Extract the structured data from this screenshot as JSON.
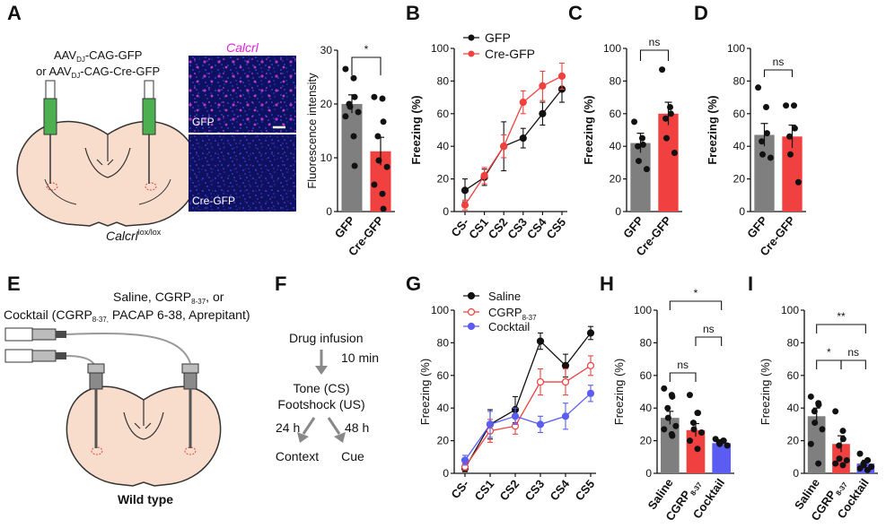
{
  "colors": {
    "gray": "#7f7f7f",
    "red": "#f0403f",
    "blue": "#5a5cf2",
    "black": "#111111",
    "brain": "#f8dccc",
    "green": "#4cb050"
  },
  "panelA": {
    "label": "A",
    "virus_line1": "AAV",
    "virus_sub": "DJ",
    "virus_line1_tail": "-CAG-GFP",
    "virus_line2_head": "or AAV",
    "virus_line2_tail": "-CAG-Cre-GFP",
    "mouse_gene": "Calcrl",
    "mouse_sup": "lox/lox",
    "micro_title": "Calcrl",
    "micro_top": "GFP",
    "micro_bottom": "Cre-GFP",
    "ylabel": "Fluorescence intensity",
    "categories": [
      "GFP",
      "Cre-GFP"
    ],
    "means": [
      20,
      11.2
    ],
    "sem": [
      1.7,
      2.6
    ],
    "points": [
      [
        26.5,
        24.8,
        21.3,
        20,
        19.5,
        18.5,
        17.7,
        14,
        8.5
      ],
      [
        21.3,
        21,
        16.7,
        14,
        9.5,
        8.3,
        5,
        3.3,
        0.5
      ]
    ],
    "ylim": [
      0,
      30
    ],
    "yticks": [
      "0",
      "10",
      "20",
      "30"
    ],
    "sig": "*"
  },
  "panelB": {
    "label": "B",
    "ylabel": "Freezing (%)",
    "x": [
      "CS-",
      "CS1",
      "CS2",
      "CS3",
      "CS4",
      "CS5"
    ],
    "series": [
      {
        "name": "GFP",
        "values": [
          13,
          21,
          40,
          45,
          60,
          75
        ],
        "err": [
          7,
          5,
          15,
          6,
          7,
          8
        ]
      },
      {
        "name": "Cre-GFP",
        "values": [
          4,
          22,
          40,
          67,
          77,
          83
        ],
        "err": [
          3,
          5,
          7,
          7,
          9,
          8
        ]
      }
    ],
    "ylim": [
      0,
      100
    ],
    "yticks": [
      "0",
      "20",
      "40",
      "60",
      "80",
      "100"
    ]
  },
  "panelC": {
    "label": "C",
    "ylabel": "Freezing (%)",
    "categories": [
      "GFP",
      "Cre-GFP"
    ],
    "means": [
      42,
      60
    ],
    "sem": [
      6,
      7
    ],
    "points": [
      [
        55,
        45,
        41,
        40,
        31,
        26
      ],
      [
        87,
        64,
        60,
        57,
        45,
        36
      ]
    ],
    "ylim": [
      0,
      100
    ],
    "yticks": [
      "0",
      "20",
      "40",
      "60",
      "80",
      "100"
    ],
    "sig": "ns"
  },
  "panelD": {
    "label": "D",
    "ylabel": "Freezing (%)",
    "categories": [
      "GFP",
      "Cre-GFP"
    ],
    "means": [
      47,
      46
    ],
    "sem": [
      7,
      7
    ],
    "points": [
      [
        76,
        64,
        48,
        43,
        35,
        33
      ],
      [
        65,
        65,
        51,
        46,
        35,
        18
      ]
    ],
    "ylim": [
      0,
      100
    ],
    "yticks": [
      "0",
      "20",
      "40",
      "60",
      "80",
      "100"
    ],
    "sig": "ns"
  },
  "panelE": {
    "label": "E",
    "line1": "Saline, CGRP",
    "line1_sub": "8-37",
    "line1_tail": ", or",
    "line2": "Cocktail (CGRP",
    "line2_sub": "8-37,",
    "line2_tail": " PACAP 6-38,  Aprepitant)",
    "mouse": "Wild type"
  },
  "panelF": {
    "label": "F",
    "drug": "Drug infusion",
    "wait": "10 min",
    "tone": "Tone (CS)",
    "shock": "Footshock (US)",
    "t24": "24 h",
    "t48": "48 h",
    "context": "Context",
    "cue": "Cue"
  },
  "panelG": {
    "label": "G",
    "ylabel": "Freezing (%)",
    "x": [
      "CS-",
      "CS1",
      "CS2",
      "CS3",
      "CS4",
      "CS5"
    ],
    "legend_sub": "8-37",
    "series": [
      {
        "name": "Saline",
        "values": [
          3,
          30,
          39,
          81,
          66,
          86
        ],
        "err": [
          2,
          9,
          8,
          5,
          7,
          4
        ]
      },
      {
        "name": "CGRP",
        "values": [
          4,
          26,
          29,
          56,
          56,
          66
        ],
        "err": [
          2,
          7,
          5,
          8,
          8,
          6
        ]
      },
      {
        "name": "Cocktail",
        "values": [
          8,
          30,
          35,
          30,
          35,
          49
        ],
        "err": [
          3,
          8,
          5,
          5,
          8,
          5
        ]
      }
    ],
    "ylim": [
      0,
      100
    ],
    "yticks": [
      "0",
      "20",
      "40",
      "60",
      "80",
      "100"
    ]
  },
  "panelH": {
    "label": "H",
    "ylabel": "Freezing (%)",
    "categories": [
      "Saline",
      "CGRP",
      "Cocktail"
    ],
    "cat_sub": "8-37",
    "means": [
      34,
      26.5,
      18.5
    ],
    "sem": [
      4,
      4,
      1
    ],
    "points": [
      [
        52,
        48,
        47,
        40,
        34,
        29,
        27,
        24,
        23
      ],
      [
        48,
        37,
        37,
        31,
        27,
        25,
        20,
        15
      ],
      [
        21,
        20,
        20,
        19,
        18,
        17
      ]
    ],
    "ylim": [
      0,
      100
    ],
    "yticks": [
      "0",
      "20",
      "40",
      "60",
      "80",
      "100"
    ],
    "sig_long": "*",
    "sig_a": "ns",
    "sig_b": "ns"
  },
  "panelI": {
    "label": "I",
    "ylabel": "Freezing (%)",
    "categories": [
      "Saline",
      "CGRP",
      "Cocktail"
    ],
    "cat_sub": "8-37",
    "means": [
      35,
      18,
      6
    ],
    "sem": [
      5,
      5,
      2
    ],
    "points": [
      [
        47,
        43,
        42,
        38,
        31,
        27,
        18,
        6
      ],
      [
        38,
        26,
        21,
        17,
        9,
        8,
        6,
        5
      ],
      [
        12,
        8,
        8,
        6,
        5,
        4,
        3,
        2
      ]
    ],
    "ylim": [
      0,
      100
    ],
    "yticks": [
      "0",
      "20",
      "40",
      "60",
      "80",
      "100"
    ],
    "sig_long": "**",
    "sig_a": "*",
    "sig_b": "ns"
  }
}
